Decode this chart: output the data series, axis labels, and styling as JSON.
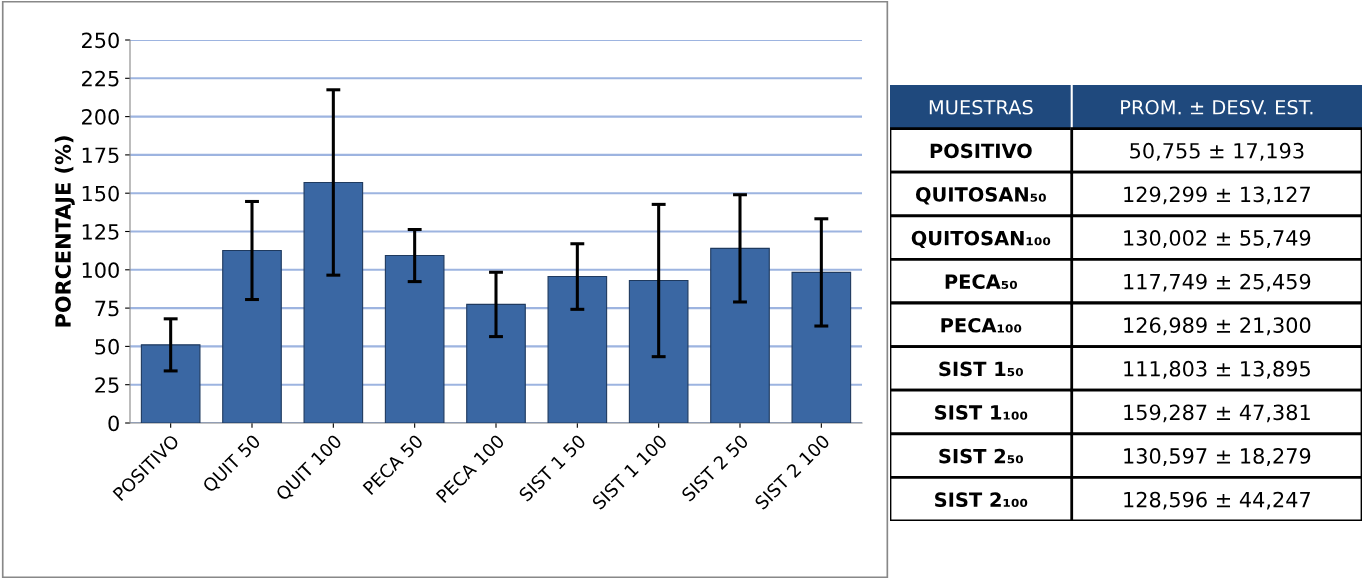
{
  "chart_data": [
    {
      "type": "bar",
      "ylabel": "PORCENTAJE (%)",
      "categories": [
        "POSITIVO",
        "QUIT 50",
        "QUIT 100",
        "PECA 50",
        "PECA 100",
        "SIST 1 50",
        "SIST 1 100",
        "SIST 2 50",
        "SIST 2 100"
      ],
      "values": [
        51,
        112.6,
        157,
        109.3,
        77.4,
        95.6,
        93,
        114,
        98.3
      ],
      "errors": [
        17,
        32,
        60.5,
        17,
        21,
        21.4,
        49.7,
        35,
        35
      ],
      "color": "#3a67a3",
      "ylim": [
        0,
        250
      ],
      "yticks": [
        0,
        25,
        50,
        75,
        100,
        125,
        150,
        175,
        200,
        225,
        250
      ],
      "grid": "y"
    },
    {
      "type": "other",
      "annotations": [
        "MUESTRAS",
        "PROM. ± DESV. EST."
      ],
      "categories": [
        "POSITIVO",
        "QUITOSAN₅₀",
        "QUITOSAN₁₀₀",
        "PECA₅₀",
        "PECA₁₀₀",
        "SIST 1₅₀",
        "SIST 1₁₀₀",
        "SIST 2₅₀",
        "SIST 2₁₀₀"
      ],
      "value_labels": [
        "50,755 ± 17,193",
        "129,299 ± 13,127",
        "130,002 ± 55,749",
        "117,749 ± 25,459",
        "126,989 ± 21,300",
        "111,803 ± 13,895",
        "159,287 ± 47,381",
        "130,597 ± 18,279",
        "128,596 ± 44,247"
      ],
      "color": "#1f497d"
    }
  ]
}
